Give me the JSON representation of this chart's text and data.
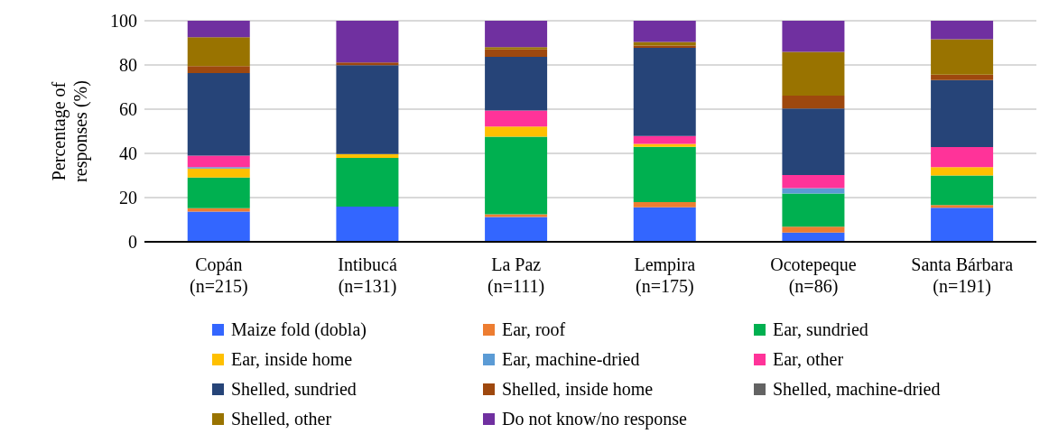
{
  "chart_data": {
    "type": "bar",
    "stacked": true,
    "ylabel": "Percentage of responses (%)",
    "categories": [
      "Copán\n(n=215)",
      "Intibucá\n(n=131)",
      "La Paz\n(n=111)",
      "Lempira\n(n=175)",
      "Ocotepeque\n(n=86)",
      "Santa Bárbara\n(n=191)"
    ],
    "series": [
      {
        "name": "Maize fold (dobla)",
        "color": "#3366ff",
        "values": [
          13.7,
          15.9,
          11.2,
          15.6,
          4.2,
          15.4
        ]
      },
      {
        "name": "Ear, roof",
        "color": "#ed7d31",
        "values": [
          1.5,
          0,
          1.2,
          2.4,
          2.6,
          1.2
        ]
      },
      {
        "name": "Ear, sundried",
        "color": "#00b050",
        "values": [
          13.9,
          22.1,
          35.2,
          25.0,
          15.0,
          13.4
        ]
      },
      {
        "name": "Ear, inside home",
        "color": "#ffc000",
        "values": [
          4.1,
          1.7,
          4.5,
          1.3,
          0,
          3.8
        ]
      },
      {
        "name": "Ear, machine-dried",
        "color": "#5b9bd5",
        "values": [
          0.6,
          0,
          0,
          0,
          2.5,
          0
        ]
      },
      {
        "name": "Ear, other",
        "color": "#ff3399",
        "values": [
          5.2,
          0,
          7.3,
          3.6,
          5.9,
          9.1
        ]
      },
      {
        "name": "Shelled, sundried",
        "color": "#264478",
        "values": [
          37.3,
          40.2,
          24.3,
          39.9,
          30.1,
          30.3
        ]
      },
      {
        "name": "Shelled, inside home",
        "color": "#9e480e",
        "values": [
          3.2,
          1.2,
          3.3,
          1.0,
          5.8,
          2.4
        ]
      },
      {
        "name": "Shelled, machine-dried",
        "color": "#636363",
        "values": [
          0,
          0,
          0,
          0,
          0,
          0
        ]
      },
      {
        "name": "Shelled, other",
        "color": "#997300",
        "values": [
          13.1,
          0,
          1.1,
          1.6,
          19.8,
          16.0
        ]
      },
      {
        "name": "Do not know/no response",
        "color": "#7030a0",
        "values": [
          7.4,
          18.9,
          11.9,
          9.6,
          14.1,
          8.4
        ]
      }
    ],
    "ylim": [
      0,
      100
    ],
    "yticks": [
      0,
      20,
      40,
      60,
      80,
      100
    ],
    "grid": "y",
    "legend": "bottom"
  }
}
